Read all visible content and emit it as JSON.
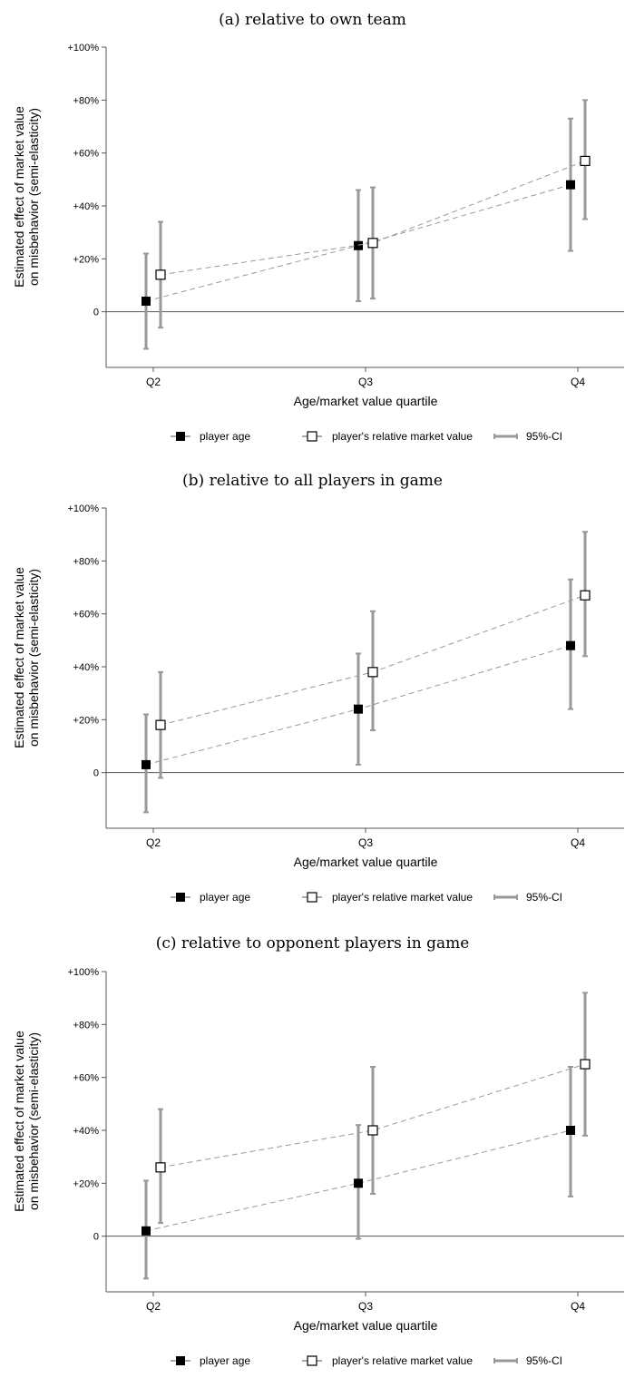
{
  "chart_data": [
    {
      "type": "scatter",
      "title": "(a) relative to own team",
      "xlabel": "Age/market value quartile",
      "ylabel_lines": [
        "Estimated effect of market value",
        "on misbehavior (semi-elasticity)"
      ],
      "categories": [
        "Q2",
        "Q3",
        "Q4"
      ],
      "yticks": [
        {
          "value": 0,
          "label": "0"
        },
        {
          "value": 20,
          "label": "+20%"
        },
        {
          "value": 40,
          "label": "+40%"
        },
        {
          "value": 60,
          "label": "+60%"
        },
        {
          "value": 80,
          "label": "+80%"
        },
        {
          "value": 100,
          "label": "+100%"
        }
      ],
      "ylim": [
        -20,
        100
      ],
      "series": [
        {
          "name": "player age",
          "marker": "filled-square",
          "values": [
            4,
            25,
            48
          ],
          "ci_low": [
            -14,
            4,
            23
          ],
          "ci_high": [
            22,
            46,
            73
          ]
        },
        {
          "name": "player's relative market value",
          "marker": "open-square",
          "values": [
            14,
            26,
            57
          ],
          "ci_low": [
            -6,
            5,
            35
          ],
          "ci_high": [
            34,
            47,
            80
          ]
        }
      ],
      "ci_legend": "95%-CI"
    },
    {
      "type": "scatter",
      "title": "(b) relative to all players in game",
      "xlabel": "Age/market value quartile",
      "ylabel_lines": [
        "Estimated effect of market value",
        "on misbehavior (semi-elasticity)"
      ],
      "categories": [
        "Q2",
        "Q3",
        "Q4"
      ],
      "yticks": [
        {
          "value": 0,
          "label": "0"
        },
        {
          "value": 20,
          "label": "+20%"
        },
        {
          "value": 40,
          "label": "+40%"
        },
        {
          "value": 60,
          "label": "+60%"
        },
        {
          "value": 80,
          "label": "+80%"
        },
        {
          "value": 100,
          "label": "+100%"
        }
      ],
      "ylim": [
        -20,
        100
      ],
      "series": [
        {
          "name": "player age",
          "marker": "filled-square",
          "values": [
            3,
            24,
            48
          ],
          "ci_low": [
            -15,
            3,
            24
          ],
          "ci_high": [
            22,
            45,
            73
          ]
        },
        {
          "name": "player's relative market value",
          "marker": "open-square",
          "values": [
            18,
            38,
            67
          ],
          "ci_low": [
            -2,
            16,
            44
          ],
          "ci_high": [
            38,
            61,
            91
          ]
        }
      ],
      "ci_legend": "95%-CI"
    },
    {
      "type": "scatter",
      "title": "(c) relative to opponent players in game",
      "xlabel": "Age/market value quartile",
      "ylabel_lines": [
        "Estimated effect of market value",
        "on misbehavior (semi-elasticity)"
      ],
      "categories": [
        "Q2",
        "Q3",
        "Q4"
      ],
      "yticks": [
        {
          "value": 0,
          "label": "0"
        },
        {
          "value": 20,
          "label": "+20%"
        },
        {
          "value": 40,
          "label": "+40%"
        },
        {
          "value": 60,
          "label": "+60%"
        },
        {
          "value": 80,
          "label": "+80%"
        },
        {
          "value": 100,
          "label": "+100%"
        }
      ],
      "ylim": [
        -20,
        100
      ],
      "series": [
        {
          "name": "player age",
          "marker": "filled-square",
          "values": [
            2,
            20,
            40
          ],
          "ci_low": [
            -16,
            -1,
            15
          ],
          "ci_high": [
            21,
            42,
            64
          ]
        },
        {
          "name": "player's relative market value",
          "marker": "open-square",
          "values": [
            26,
            40,
            65
          ],
          "ci_low": [
            5,
            16,
            38
          ],
          "ci_high": [
            48,
            64,
            92
          ]
        }
      ],
      "ci_legend": "95%-CI"
    }
  ]
}
